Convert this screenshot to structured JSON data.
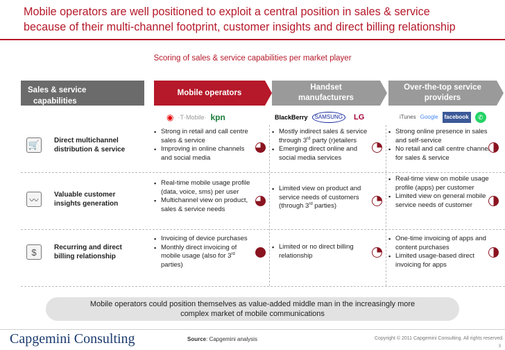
{
  "title": {
    "line1": "Mobile operators are well positioned to exploit a central position in sales & service",
    "line2": "because of their multi-channel footprint, customer insights and direct billing relationship"
  },
  "subtitle": "Scoring of sales & service capabilities per market player",
  "sidebar": {
    "head_line1": "Sales & service",
    "head_line2": "capabilities"
  },
  "columns": {
    "mobile": "Mobile operators",
    "handset_line1": "Handset",
    "handset_line2": "manufacturers",
    "ott_line1": "Over-the-top service",
    "ott_line2": "providers"
  },
  "logos": {
    "vodafone": "◉",
    "tmobile": "·T·Mobile·",
    "kpn": "kpn",
    "blackberry": "BlackBerry",
    "samsung": "SAMSUNG",
    "apple": "",
    "lg": "LG",
    "itunes": "iTunes",
    "google": "Google",
    "facebook": "facebook",
    "whatsapp": "✆"
  },
  "capabilities": [
    {
      "line1": "Direct multichannel",
      "line2": "distribution & service",
      "icon": "cart-icon",
      "glyph": "🛒"
    },
    {
      "line1": "Valuable customer",
      "line2": "insights generation",
      "icon": "chart-icon",
      "glyph": "〰"
    },
    {
      "line1": "Recurring and direct",
      "line2": "billing relationship",
      "icon": "billing-icon",
      "glyph": "$"
    }
  ],
  "cells": {
    "r1_mobile": [
      "Strong in retail and call centre sales & service",
      "Improving in online channels and social media"
    ],
    "r1_handset": [
      "Mostly indirect sales & service through 3rd party (r)etailers",
      "Emerging direct online and social media services"
    ],
    "r1_ott": [
      "Strong online presence in sales and self-service",
      "No retail and call centre channel for sales & service"
    ],
    "r2_mobile": [
      "Real-time mobile usage profile (data, voice, sms) per user",
      "Multichannel view on product, sales & service needs"
    ],
    "r2_handset": [
      "Limited view on product and service needs of customers (through 3rd parties)"
    ],
    "r2_ott": [
      "Real-time view on mobile usage profile (apps) per customer",
      "Limited view on general mobile service needs of customer"
    ],
    "r3_mobile": [
      "Invoicing of device purchases",
      "Monthly direct invoicing of mobile usage (also for 3rd parties)"
    ],
    "r3_handset": [
      "Limited or no direct billing relationship"
    ],
    "r3_ott": [
      "One-time invoicing of apps and content purchases",
      "Limited usage-based direct invoicing for apps"
    ]
  },
  "scores": {
    "r1_mobile": 0.75,
    "r1_handset": 0.25,
    "r1_ott": 0.5,
    "r2_mobile": 0.75,
    "r2_handset": 0.25,
    "r2_ott": 0.5,
    "r3_mobile": 1.0,
    "r3_handset": 0.25,
    "r3_ott": 0.5
  },
  "score_color": "#8a1420",
  "bottom": {
    "line1": "Mobile operators could position themselves as value-added middle man in the increasingly more",
    "line2": "complex market of mobile communications"
  },
  "footer": {
    "brand": "Capgemini Consulting",
    "source_label": "Source",
    "source_text": ": Capgemini analysis",
    "copyright": "Copyright © 2011 Capgemini Consulting. All rights reserved.",
    "page": "3"
  }
}
